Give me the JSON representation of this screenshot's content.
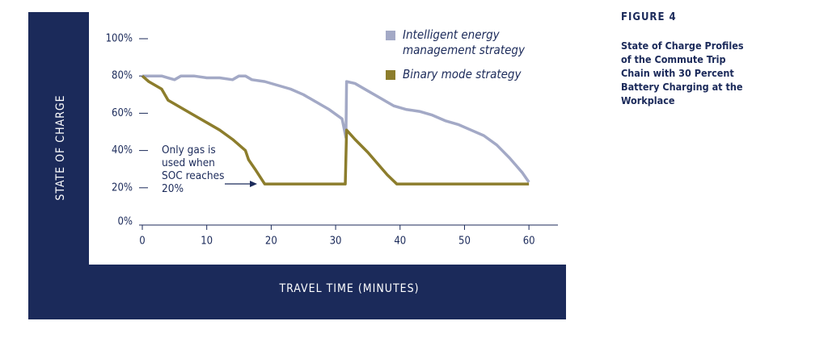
{
  "chart_data": {
    "type": "line",
    "figure_label": "FIGURE 4",
    "title": "State of Charge Profiles of the Commute Trip Chain with 30 Percent Battery Charging at the Workplace",
    "xlabel": "TRAVEL TIME (MINUTES)",
    "ylabel": "STATE OF CHARGE",
    "annotation": "Only gas is used when SOC reaches 20%",
    "xlim": [
      0,
      64.5
    ],
    "xticks": [
      0,
      10,
      20,
      30,
      40,
      50,
      60
    ],
    "ylim": [
      0,
      100
    ],
    "yticks": [
      {
        "value": 0,
        "label": "0%"
      },
      {
        "value": 20,
        "label": "20%"
      },
      {
        "value": 40,
        "label": "40%"
      },
      {
        "value": 60,
        "label": "60%"
      },
      {
        "value": 80,
        "label": "80%"
      },
      {
        "value": 100,
        "label": "100%"
      }
    ],
    "grid": false,
    "series": [
      {
        "name": "Intelligent energy management strategy",
        "color": "#a3a9c6",
        "x": [
          0,
          3,
          4,
          5,
          6,
          8,
          10,
          12,
          14,
          15,
          16,
          17,
          19,
          21,
          23,
          25,
          27,
          29,
          31,
          31.6,
          31.7,
          33,
          35,
          37,
          39,
          41,
          43,
          45,
          47,
          49,
          51,
          53,
          55,
          57,
          59,
          60
        ],
        "values": [
          80,
          80,
          79,
          78,
          80,
          80,
          79,
          79,
          78,
          80,
          80,
          78,
          77,
          75,
          73,
          70,
          66,
          62,
          57,
          47,
          77,
          76,
          72,
          68,
          64,
          62,
          61,
          59,
          56,
          54,
          51,
          48,
          43,
          36,
          28,
          23
        ]
      },
      {
        "name": "Binary mode strategy",
        "color": "#8c7d2c",
        "x": [
          0,
          1,
          3,
          4,
          6,
          8,
          10,
          12,
          14,
          16,
          16.5,
          17.5,
          19,
          31.5,
          31.7,
          33,
          35,
          37,
          38,
          39.5,
          60
        ],
        "values": [
          80,
          77,
          73,
          67,
          63,
          59,
          55,
          51,
          46,
          40,
          35,
          30,
          22,
          22,
          51,
          46,
          39,
          31,
          27,
          22,
          22
        ]
      }
    ]
  }
}
